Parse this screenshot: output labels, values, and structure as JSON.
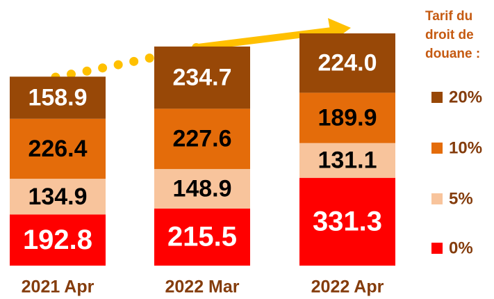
{
  "chart_data": {
    "type": "stacked_bar",
    "categories": [
      "2021 Apr",
      "2022 Mar",
      "2022 Apr"
    ],
    "legend_title": "Tarif du droit de douane :",
    "series": [
      {
        "name": "0%",
        "color": "#ff0000",
        "label_color": "#ffffff",
        "values": [
          192.8,
          215.5,
          331.3
        ]
      },
      {
        "name": "5%",
        "color": "#f8c49c",
        "label_color": "#000000",
        "values": [
          134.9,
          148.9,
          131.1
        ]
      },
      {
        "name": "10%",
        "color": "#e46c0a",
        "label_color": "#000000",
        "values": [
          226.4,
          227.6,
          189.9
        ]
      },
      {
        "name": "20%",
        "color": "#984807",
        "label_color": "#ffffff",
        "values": [
          158.9,
          234.7,
          224.0
        ],
        "value_labels": [
          "158.9",
          "234.7",
          "224.0"
        ]
      }
    ],
    "legend": "right"
  }
}
